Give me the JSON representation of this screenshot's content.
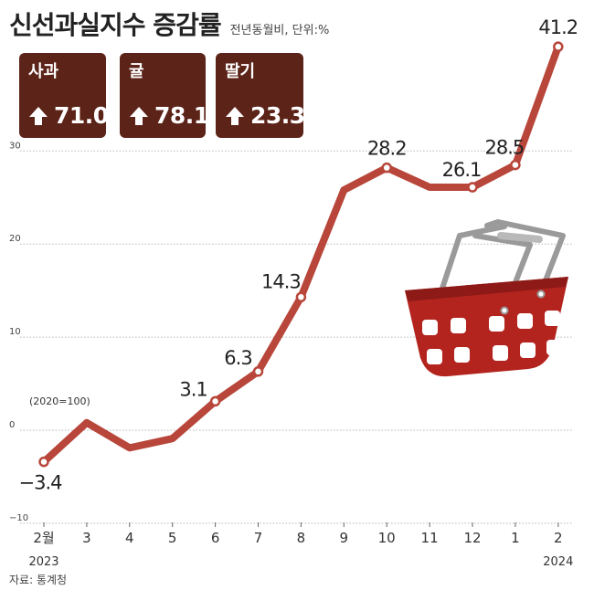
{
  "title": "신선과실지수 증감률",
  "subtitle": "전년동월비, 단위:%",
  "source": "자료: 통계청",
  "cards": [
    {
      "label": "사과",
      "value": "71.0"
    },
    {
      "label": "귤",
      "value": "78.1"
    },
    {
      "label": "딸기",
      "value": "23.3"
    }
  ],
  "colors": {
    "line": "#b8463a",
    "card": "#5c2318",
    "basket": "#b3241f",
    "handle": "#9a9a9a"
  },
  "icons": {
    "card_arrow": "up-arrow-icon",
    "illustration": "shopping-basket-icon"
  },
  "chart_data": {
    "type": "line",
    "categories": [
      "2월",
      "3",
      "4",
      "5",
      "6",
      "7",
      "8",
      "9",
      "10",
      "11",
      "12",
      "1",
      "2"
    ],
    "year_labels": [
      "2023",
      "",
      "",
      "",
      "",
      "",
      "",
      "",
      "",
      "",
      "",
      "",
      "2024"
    ],
    "values": [
      -3.4,
      0.8,
      -1.9,
      -0.9,
      3.1,
      6.3,
      14.3,
      25.8,
      28.2,
      26.1,
      26.1,
      28.5,
      41.2
    ],
    "data_labels": [
      "−3.4",
      "",
      "",
      "",
      "3.1",
      "6.3",
      "14.3",
      "",
      "28.2",
      "",
      "26.1",
      "28.5",
      "41.2"
    ],
    "y_ticks": [
      "−10",
      "0",
      "10",
      "20",
      "30"
    ],
    "y_tick_values": [
      -10,
      0,
      10,
      20,
      30
    ],
    "ylim": [
      -10,
      41.2
    ],
    "annotation": "(2020=100)",
    "grid": true
  }
}
